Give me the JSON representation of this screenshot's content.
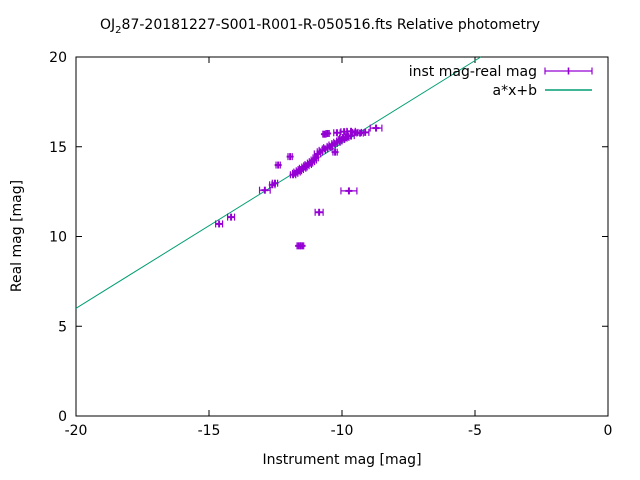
{
  "chart_data": {
    "type": "scatter",
    "title_prefix": "OJ",
    "title_sub": "2",
    "title_rest": "87-20181227-S001-R001-R-050516.fts Relative photometry",
    "xlabel": "Instrument mag [mag]",
    "ylabel": "Real mag [mag]",
    "xlim": [
      -20,
      0
    ],
    "ylim": [
      0,
      20
    ],
    "xticks": [
      -20,
      -15,
      -10,
      -5,
      0
    ],
    "yticks": [
      0,
      5,
      10,
      15,
      20
    ],
    "grid": false,
    "legend_position": "top-right-inside",
    "background": "#ffffff",
    "axis_color": "#000000",
    "series": [
      {
        "name": "inst mag-real mag",
        "style": "xerrorbars",
        "marker": "plus",
        "color": "#9400d3",
        "points": [
          [
            -14.62,
            10.7,
            0.13
          ],
          [
            -14.17,
            11.08,
            0.13
          ],
          [
            -12.9,
            12.58,
            0.2
          ],
          [
            -12.62,
            12.88,
            0.1
          ],
          [
            -12.52,
            12.97,
            0.1
          ],
          [
            -12.4,
            13.98,
            0.08
          ],
          [
            -11.95,
            14.45,
            0.08
          ],
          [
            -11.84,
            13.44,
            0.1
          ],
          [
            -11.76,
            13.52,
            0.1
          ],
          [
            -11.69,
            13.59,
            0.12
          ],
          [
            -11.62,
            13.66,
            0.1
          ],
          [
            -11.55,
            13.73,
            0.1
          ],
          [
            -11.48,
            13.8,
            0.12
          ],
          [
            -11.41,
            13.87,
            0.1
          ],
          [
            -11.34,
            13.94,
            0.1
          ],
          [
            -11.27,
            14.01,
            0.12
          ],
          [
            -11.2,
            14.09,
            0.1
          ],
          [
            -11.13,
            14.17,
            0.1
          ],
          [
            -11.06,
            14.26,
            0.1
          ],
          [
            -10.99,
            14.38,
            0.1
          ],
          [
            -10.92,
            14.6,
            0.12
          ],
          [
            -10.83,
            14.72,
            0.1
          ],
          [
            -10.74,
            14.8,
            0.12
          ],
          [
            -10.64,
            14.88,
            0.1
          ],
          [
            -10.55,
            14.95,
            0.14
          ],
          [
            -10.46,
            15.02,
            0.1
          ],
          [
            -10.37,
            15.1,
            0.12
          ],
          [
            -10.28,
            15.18,
            0.1
          ],
          [
            -10.19,
            15.25,
            0.12
          ],
          [
            -10.1,
            15.32,
            0.1
          ],
          [
            -10.66,
            15.7,
            0.06
          ],
          [
            -10.54,
            15.74,
            0.06
          ],
          [
            -10.26,
            14.7,
            0.08
          ],
          [
            -10.02,
            15.4,
            0.12
          ],
          [
            -9.95,
            15.48,
            0.14
          ],
          [
            -9.86,
            15.52,
            0.12
          ],
          [
            -9.76,
            15.58,
            0.1
          ],
          [
            -9.66,
            15.62,
            0.12
          ],
          [
            -10.19,
            15.78,
            0.12
          ],
          [
            -9.92,
            15.84,
            0.12
          ],
          [
            -9.66,
            15.86,
            0.16
          ],
          [
            -9.5,
            15.8,
            0.1
          ],
          [
            -9.32,
            15.76,
            0.12
          ],
          [
            -9.13,
            15.8,
            0.14
          ],
          [
            -8.72,
            16.04,
            0.22
          ],
          [
            -10.86,
            11.35,
            0.15
          ],
          [
            -9.74,
            12.54,
            0.3
          ],
          [
            -11.63,
            9.48,
            0.06
          ],
          [
            -11.5,
            9.48,
            0.06
          ]
        ]
      },
      {
        "name": "a*x+b",
        "style": "line",
        "color": "#009e73",
        "a": 0.92,
        "b": 24.4
      }
    ]
  }
}
